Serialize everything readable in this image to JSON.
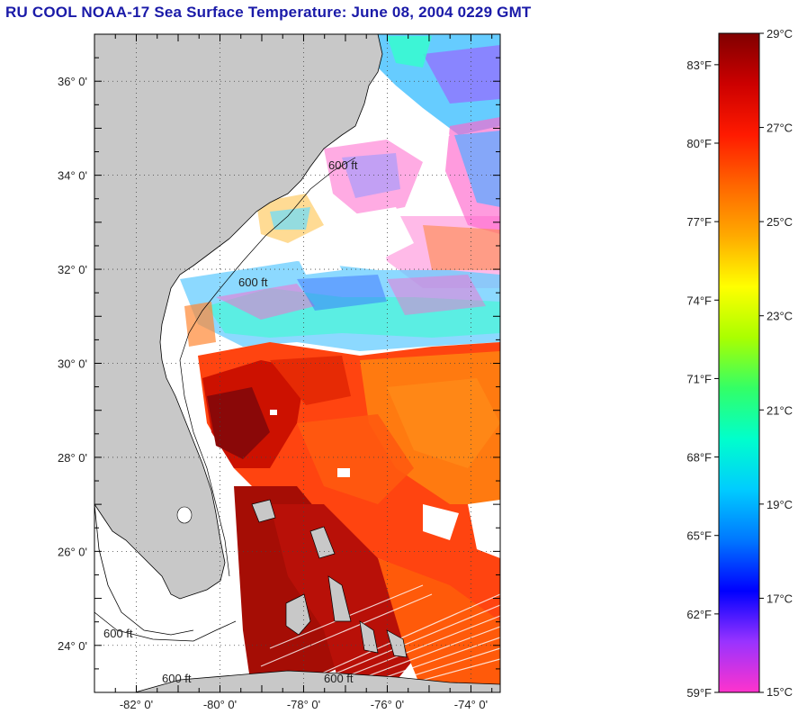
{
  "title": "RU COOL  NOAA-17  Sea Surface Temperature:  June 08, 2004 0229 GMT",
  "map": {
    "lat_range": [
      23.0,
      37.0
    ],
    "lon_range": [
      -83.0,
      -73.3
    ],
    "lat_ticks": [
      {
        "value": 36,
        "label": "36° 0'"
      },
      {
        "value": 34,
        "label": "34° 0'"
      },
      {
        "value": 32,
        "label": "32° 0'"
      },
      {
        "value": 30,
        "label": "30° 0'"
      },
      {
        "value": 28,
        "label": "28° 0'"
      },
      {
        "value": 26,
        "label": "26° 0'"
      },
      {
        "value": 24,
        "label": "24° 0'"
      }
    ],
    "lon_ticks": [
      {
        "value": -82,
        "label": "-82° 0'"
      },
      {
        "value": -80,
        "label": "-80° 0'"
      },
      {
        "value": -78,
        "label": "-78° 0'"
      },
      {
        "value": -76,
        "label": "-76° 0'"
      },
      {
        "value": -74,
        "label": "-74° 0'"
      }
    ],
    "isobath_labels": [
      "600 ft",
      "600 ft",
      "600 ft",
      "600 ft",
      "600 ft"
    ],
    "colors": {
      "land": "#c8c8c8",
      "ocean": "#ffffff",
      "grid": "#555555"
    }
  },
  "colorbar": {
    "fahrenheit_labels": [
      "83°F",
      "80°F",
      "77°F",
      "74°F",
      "71°F",
      "68°F",
      "65°F",
      "62°F",
      "59°F"
    ],
    "fahrenheit_values": [
      83,
      80,
      77,
      74,
      71,
      68,
      65,
      62,
      59
    ],
    "celsius_labels": [
      "29°C",
      "27°C",
      "25°C",
      "23°C",
      "21°C",
      "19°C",
      "17°C",
      "15°C"
    ],
    "celsius_values": [
      29,
      27,
      25,
      23,
      21,
      19,
      17,
      15
    ],
    "range_c": [
      15,
      29
    ],
    "colors": [
      "#ff33cc",
      "#9933ff",
      "#0000ff",
      "#0077ff",
      "#00ccff",
      "#00ffcc",
      "#33ff66",
      "#aaff00",
      "#ffff00",
      "#ffaa00",
      "#ff6600",
      "#ff1a00",
      "#cc0000",
      "#800000"
    ]
  }
}
